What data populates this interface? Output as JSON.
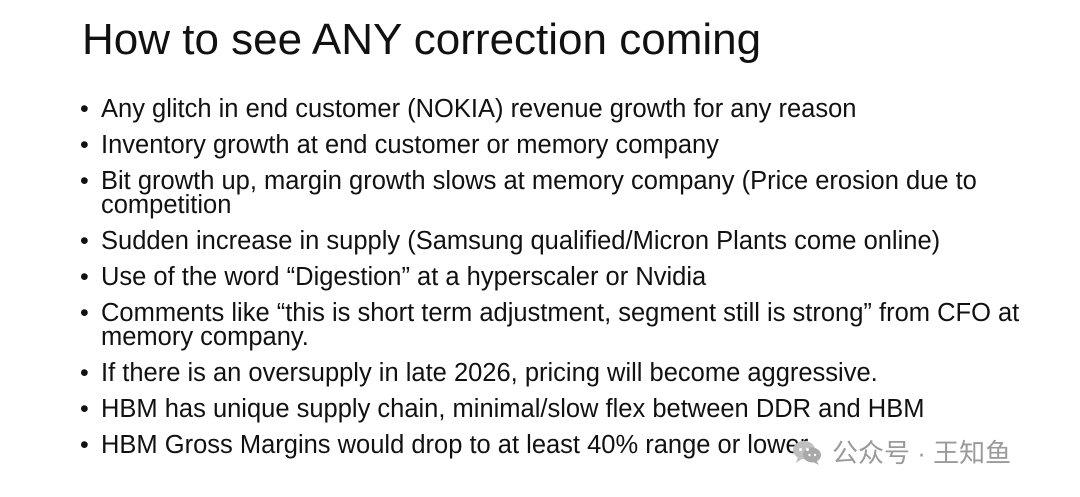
{
  "title": "How to see ANY correction coming",
  "bullets": [
    "Any glitch in end customer (NOKIA) revenue growth for any reason",
    "Inventory growth at end customer or memory company",
    "Bit growth up, margin growth slows at memory company (Price erosion due to competition",
    "Sudden increase in supply (Samsung qualified/Micron Plants come online)",
    "Use of the word “Digestion” at a hyperscaler or Nvidia",
    "Comments like “this is short term adjustment, segment still is strong” from CFO at memory company.",
    "If there is an oversupply in late 2026, pricing will become aggressive.",
    "HBM has unique supply chain, minimal/slow flex between DDR and HBM",
    "HBM Gross Margins would drop to at least 40% range or lower"
  ],
  "watermark": {
    "text": "公众号 · 王知鱼",
    "icon": "wechat-icon"
  }
}
